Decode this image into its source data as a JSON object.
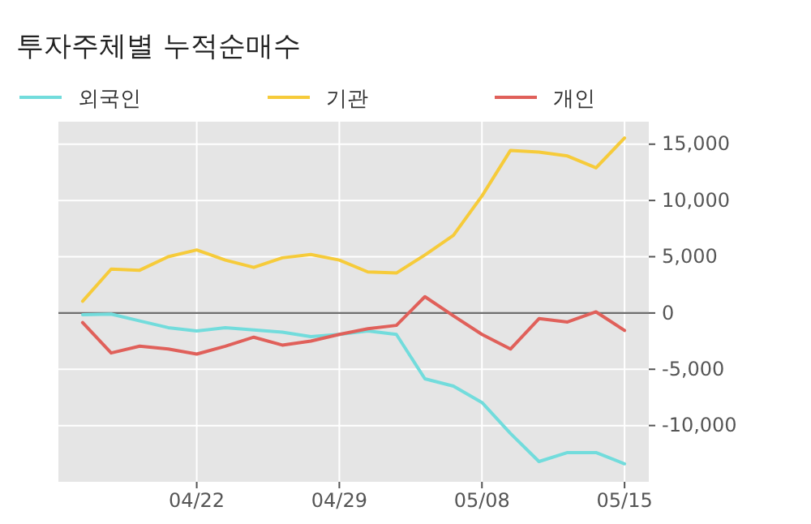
{
  "chart_data": {
    "type": "line",
    "title": "투자주체별 누적순매수",
    "categories": [
      null,
      null,
      null,
      null,
      "04/22",
      null,
      null,
      null,
      null,
      "04/29",
      null,
      null,
      null,
      null,
      "05/08",
      null,
      null,
      null,
      null,
      "05/15"
    ],
    "series": [
      {
        "name": "외국인",
        "color": "#72dcdc",
        "values": [
          -150,
          -100,
          -700,
          -1300,
          -1600,
          -1300,
          -1500,
          -1700,
          -2100,
          -1900,
          -1600,
          -1900,
          -5850,
          -6500,
          -7950,
          -10700,
          -13200,
          -12400,
          -12400,
          -13400
        ]
      },
      {
        "name": "기관",
        "color": "#f6cb3a",
        "values": [
          1050,
          3900,
          3800,
          5000,
          5600,
          4700,
          4050,
          4900,
          5200,
          4700,
          3650,
          3550,
          5150,
          6900,
          10400,
          14450,
          14300,
          13950,
          12900,
          15550
        ]
      },
      {
        "name": "개인",
        "color": "#e0605a",
        "values": [
          -850,
          -3550,
          -2950,
          -3200,
          -3650,
          -2950,
          -2150,
          -2850,
          -2500,
          -1900,
          -1400,
          -1100,
          1450,
          -250,
          -1900,
          -3200,
          -500,
          -800,
          100,
          -1550
        ]
      }
    ],
    "ylim": [
      -15000,
      17000
    ],
    "yticks": [
      {
        "value": -10000,
        "label": "-10,000"
      },
      {
        "value": -5000,
        "label": "-5,000"
      },
      0,
      {
        "value": 5000,
        "label": "5,000"
      },
      {
        "value": 10000,
        "label": "10,000"
      },
      {
        "value": 15000,
        "label": "15,000"
      }
    ],
    "ref_lines": [
      {
        "axis": "y",
        "value": 0,
        "color": "#6e6e6e"
      }
    ],
    "grid": true,
    "legend": "top left",
    "marker": "none",
    "line_style": "solid"
  }
}
